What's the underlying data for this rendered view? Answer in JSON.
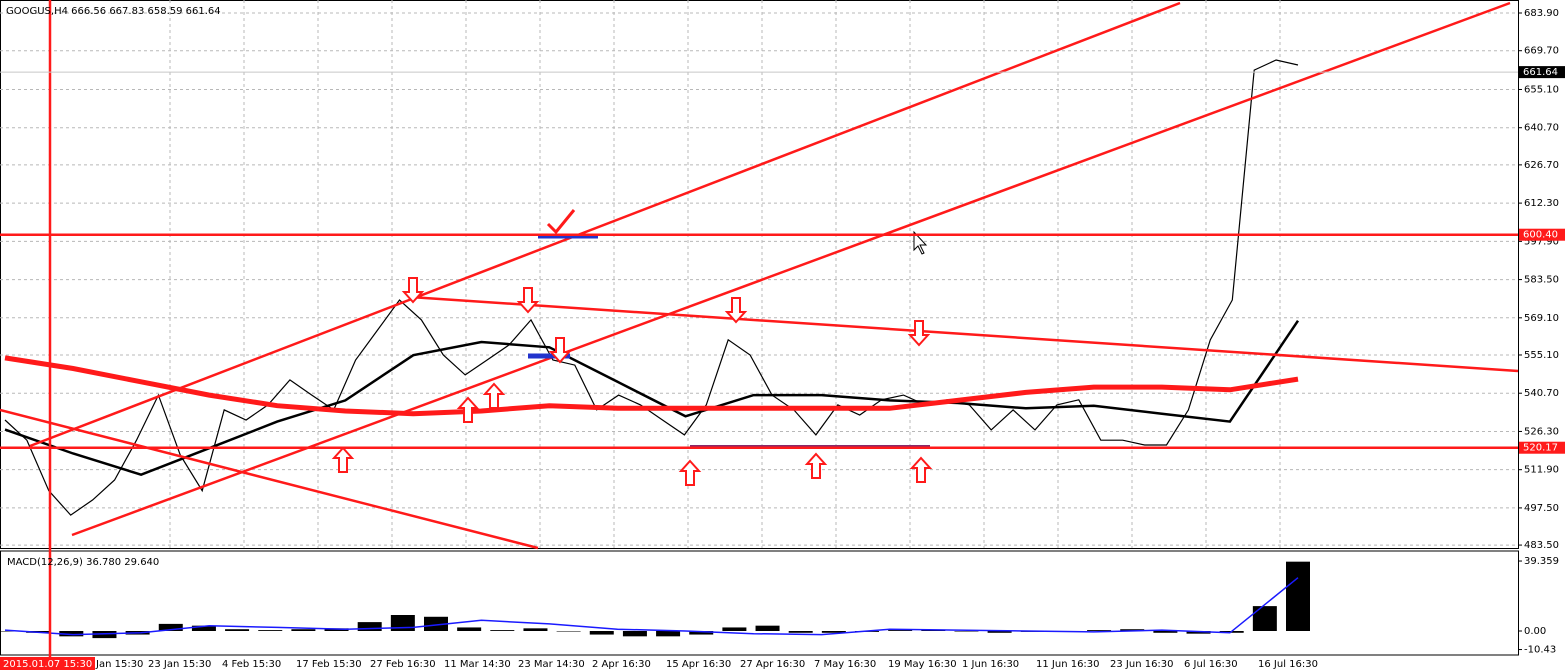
{
  "chart_data": [
    {
      "type": "line",
      "title": "GOOGUS,H4  666.56 667.83 658.59 661.64",
      "ylim": [
        482.4,
        688.8
      ],
      "yticks": [
        {
          "value": 683.9,
          "label": "683.90"
        },
        {
          "value": 669.7,
          "label": "669.70"
        },
        {
          "value": 655.1,
          "label": "655.10"
        },
        {
          "value": 640.7,
          "label": "640.70"
        },
        {
          "value": 626.7,
          "label": "626.70"
        },
        {
          "value": 612.3,
          "label": "612.30"
        },
        {
          "value": 597.9,
          "label": "597.90"
        },
        {
          "value": 583.5,
          "label": "583.50"
        },
        {
          "value": 569.1,
          "label": "569.10"
        },
        {
          "value": 555.1,
          "label": "555.10"
        },
        {
          "value": 540.7,
          "label": "540.70"
        },
        {
          "value": 526.3,
          "label": "526.30"
        },
        {
          "value": 511.9,
          "label": "511.90"
        },
        {
          "value": 497.5,
          "label": "497.50"
        },
        {
          "value": 483.5,
          "label": "483.50"
        }
      ],
      "grid": true,
      "levels": [
        {
          "value": 600.4,
          "label": "600.40",
          "color": "#ff1a1a"
        },
        {
          "value": 520.17,
          "label": "520.17",
          "color": "#ff1a1a"
        },
        {
          "value": 661.64,
          "label": "661.64",
          "color": "#000000"
        }
      ],
      "x_labels": [
        "2015.01.07 15:30",
        "Jan 15:30",
        "23 Jan 15:30",
        "4 Feb 15:30",
        "17 Feb 15:30",
        "27 Feb 16:30",
        "11 Mar 14:30",
        "23 Mar 14:30",
        "2 Apr 16:30",
        "15 Apr 16:30",
        "27 Apr 16:30",
        "7 May 16:30",
        "19 May 16:30",
        "1 Jun 16:30",
        "11 Jun 16:30",
        "23 Jun 16:30",
        "6 Jul 16:30",
        "16 Jul 16:30"
      ],
      "series": [
        {
          "color": "#000000",
          "width": 1.2,
          "values": [
            530.6,
            523,
            504,
            494.8,
            500.5,
            508,
            523,
            540,
            517.4,
            504,
            534.4,
            530.6,
            536.3,
            545.7,
            540,
            534.4,
            553.2,
            564.5,
            575.8,
            568.3,
            555.1,
            547.6,
            553.2,
            558.9,
            568.3,
            553.2,
            551.3,
            534.4,
            540,
            536.3,
            530.6,
            525,
            536.3,
            560.8,
            555.1,
            540,
            534.4,
            525,
            536.3,
            532.5,
            538.2,
            540,
            536.3,
            538.2,
            536.3,
            526.9,
            534.4,
            526.9,
            536.3,
            538.2,
            523,
            523,
            521.2,
            521.2,
            534.4,
            560.8,
            575.8,
            662.4,
            666.2,
            664.3
          ]
        },
        {
          "color": "#000000",
          "width": 2.5,
          "values": [
            527,
            518,
            510,
            520,
            530,
            538,
            555,
            560,
            558,
            545,
            532,
            540,
            540,
            538,
            537,
            535,
            536,
            533,
            530,
            568
          ]
        },
        {
          "color": "#ff1a1a",
          "width": 5,
          "values": [
            554,
            550,
            545,
            540,
            536,
            534,
            533,
            534,
            536,
            535,
            535,
            535,
            535,
            535,
            538,
            541,
            543,
            543,
            542,
            546
          ]
        }
      ]
    },
    {
      "type": "bar",
      "title": "MACD(12,26,9) 36.780 29.640",
      "ylim": [
        -13.5,
        45
      ],
      "yticks": [
        39.359,
        {
          "value": 0,
          "label": "0.00"
        },
        -10.43
      ],
      "color": "#000000",
      "values": [
        0,
        -1,
        -3,
        -4,
        -2,
        4,
        3,
        1,
        0.5,
        1,
        1.5,
        5,
        9,
        8,
        2,
        0.5,
        1.5,
        0,
        -2,
        -3,
        -3,
        -2,
        2,
        3,
        -1,
        -1,
        -0.5,
        0.5,
        0.5,
        0,
        -1,
        -0.5,
        -0.5,
        0.5,
        1,
        -1,
        -1.5,
        -1,
        14,
        39
      ],
      "series": [
        {
          "color": "#1a1aff",
          "values": [
            0.5,
            -2,
            -1,
            3,
            2,
            1,
            2,
            6,
            4,
            1,
            0,
            -1.5,
            -2,
            1,
            0.5,
            0,
            -0.5,
            0.5,
            -1,
            30
          ]
        }
      ]
    }
  ]
}
